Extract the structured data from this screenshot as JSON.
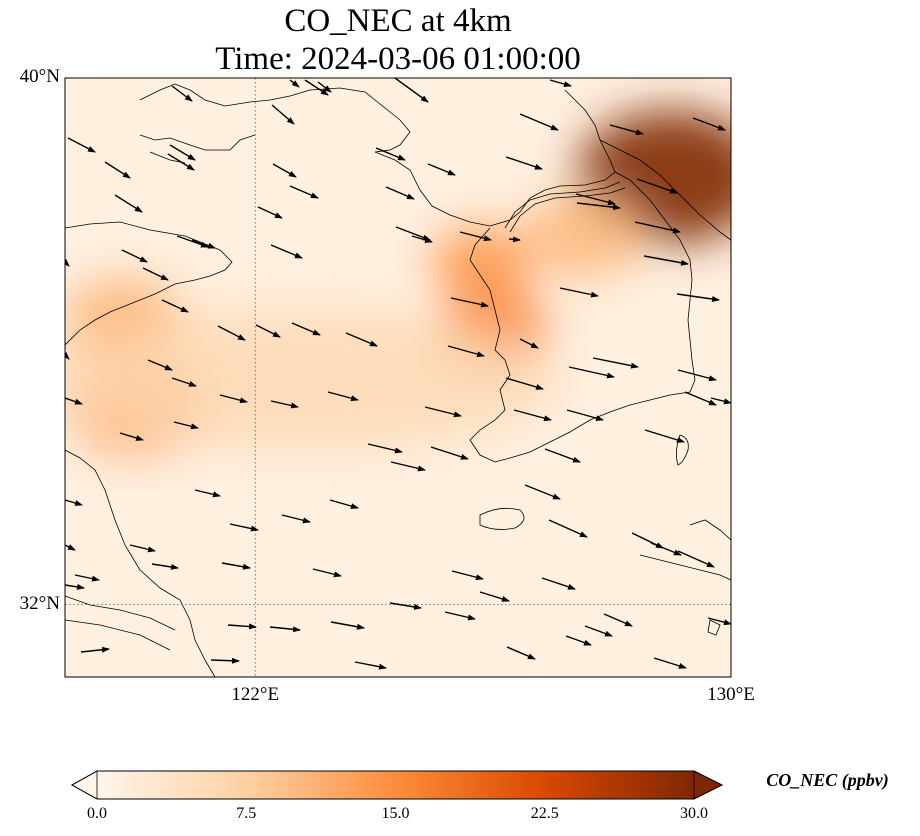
{
  "title": {
    "line1": "CO_NEC at 4km",
    "line2": "Time: 2024-03-06 01:00:00"
  },
  "map": {
    "lon_range": [
      118.8,
      130.0
    ],
    "lat_range": [
      30.9,
      40.0
    ],
    "lat_labels": [
      {
        "value": 40,
        "text": "40°N"
      },
      {
        "value": 32,
        "text": "32°N"
      }
    ],
    "lon_labels": [
      {
        "value": 122,
        "text": "122°E"
      },
      {
        "value": 130,
        "text": "130°E"
      }
    ],
    "gridlines": {
      "lons": [
        122
      ],
      "lats": [
        32
      ],
      "style": "dotted"
    },
    "field": "CO_NEC",
    "hotspots": [
      {
        "lon": 129.0,
        "lat": 38.5,
        "value": 30
      },
      {
        "lon": 126.0,
        "lat": 36.2,
        "value": 16
      },
      {
        "lon": 125.8,
        "lat": 37.2,
        "value": 14
      },
      {
        "lon": 120.0,
        "lat": 35.0,
        "value": 12
      },
      {
        "lon": 119.8,
        "lat": 36.3,
        "value": 11
      },
      {
        "lon": 127.5,
        "lat": 37.6,
        "value": 10
      }
    ],
    "wind_vector_note": "uniform-ish westerly flow"
  },
  "colorbar": {
    "min": 0.0,
    "max": 30.0,
    "ticks": [
      "0.0",
      "7.5",
      "15.0",
      "22.5",
      "30.0"
    ],
    "label": "CO_NEC (ppbv)",
    "colors": [
      "#fff5eb",
      "#fdd0a2",
      "#fd8d3c",
      "#d94801",
      "#7f2704"
    ],
    "extend": "both"
  }
}
